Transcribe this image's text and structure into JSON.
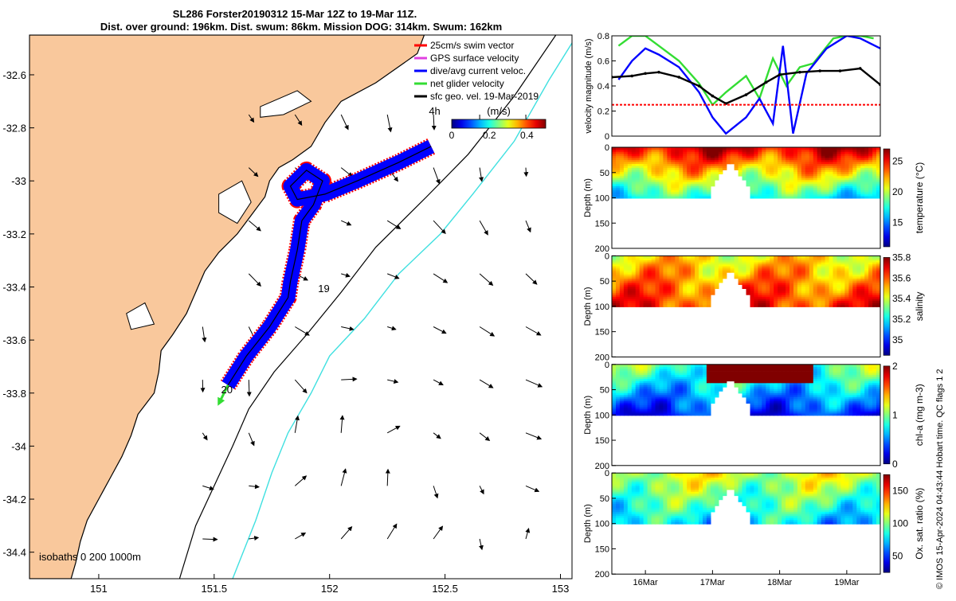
{
  "title": {
    "line1": "SL286 Forster20190312 15-Mar 12Z to 19-Mar 11Z.",
    "line2": "Dist. over ground: 196km. Dist. swum: 86km. Mission DOG: 314km. Swum: 162km"
  },
  "colors": {
    "land": "#f9c89c",
    "ocean": "#ffffff",
    "iso200": "#000000",
    "iso1000": "#3fe0e0",
    "swim": "#ff0000",
    "gps": "#e040e0",
    "dive": "#0000ff",
    "net": "#33dd33",
    "geo": "#000000"
  },
  "side_note": "© IMOS 15-Apr-2024 04:43:44 Hobart time. QC flags 1  2",
  "chart_data": [
    {
      "id": "map",
      "type": "scatter",
      "xlim": [
        150.7,
        153.05
      ],
      "ylim": [
        -34.5,
        -32.45
      ],
      "xticks": [
        "151",
        "151.5",
        "152",
        "152.5",
        "153"
      ],
      "yticks": [
        "-32.6",
        "-32.8",
        "-33",
        "-33.2",
        "-33.4",
        "-33.6",
        "-33.8",
        "-34",
        "-34.2",
        "-34.4"
      ],
      "legend": [
        {
          "label": "25cm/s swim vector",
          "color": "#ff0000"
        },
        {
          "label": "GPS surface velocity",
          "color": "#e040e0"
        },
        {
          "label": "dive/avg current veloc.",
          "color": "#0000ff"
        },
        {
          "label": "net glider velocity",
          "color": "#33dd33"
        },
        {
          "label": "sfc geo. vel. 19-Mar-2019",
          "color": "#000000"
        }
      ],
      "legend_position": "top-right",
      "colorbar": {
        "label": "(m/s)",
        "ticks": [
          "0",
          "0.2",
          "0.4"
        ],
        "range": [
          0,
          0.5
        ]
      },
      "isobaths_label": "isobaths  0   200  1000m",
      "markers": [
        {
          "label": "4h",
          "lon": 152.43,
          "lat": -32.75
        },
        {
          "label": "19",
          "lon": 151.95,
          "lat": -33.42
        },
        {
          "label": "20",
          "lon": 151.53,
          "lat": -33.8
        }
      ],
      "track": [
        [
          152.44,
          -32.87
        ],
        [
          152.3,
          -32.93
        ],
        [
          152.12,
          -33.0
        ],
        [
          151.98,
          -33.05
        ],
        [
          151.86,
          -33.07
        ],
        [
          151.83,
          -33.02
        ],
        [
          151.9,
          -32.96
        ],
        [
          151.97,
          -33.0
        ],
        [
          151.93,
          -33.09
        ],
        [
          151.88,
          -33.15
        ],
        [
          151.86,
          -33.26
        ],
        [
          151.83,
          -33.38
        ],
        [
          151.82,
          -33.44
        ],
        [
          151.74,
          -33.55
        ],
        [
          151.64,
          -33.66
        ],
        [
          151.56,
          -33.77
        ]
      ],
      "net_velocity_end": [
        151.52,
        -33.84
      ]
    },
    {
      "id": "velocity",
      "type": "line",
      "ylabel": "velocity magnitude (m/s)",
      "ylim": [
        0,
        0.8
      ],
      "yticks": [
        "0",
        "0.2",
        "0.4",
        "0.6",
        "0.8"
      ],
      "xlim": [
        15.5,
        19.5
      ],
      "series": [
        {
          "color": "#33dd33",
          "x": [
            15.6,
            15.8,
            16.0,
            16.2,
            16.5,
            16.8,
            17.0,
            17.2,
            17.5,
            17.7,
            17.9,
            18.1,
            18.3,
            18.5,
            18.8,
            19.0,
            19.2,
            19.4
          ],
          "values": [
            0.72,
            0.8,
            0.8,
            0.72,
            0.6,
            0.42,
            0.25,
            0.35,
            0.48,
            0.3,
            0.62,
            0.4,
            0.55,
            0.58,
            0.78,
            0.8,
            0.8,
            0.78
          ]
        },
        {
          "color": "#0000ff",
          "x": [
            15.6,
            15.8,
            16.0,
            16.2,
            16.5,
            16.8,
            17.0,
            17.2,
            17.5,
            17.7,
            17.9,
            18.05,
            18.2,
            18.4,
            18.7,
            19.0,
            19.2,
            19.5
          ],
          "values": [
            0.45,
            0.6,
            0.7,
            0.65,
            0.55,
            0.35,
            0.15,
            0.02,
            0.15,
            0.3,
            0.1,
            0.72,
            0.02,
            0.5,
            0.7,
            0.8,
            0.78,
            0.7
          ]
        },
        {
          "color": "#000000",
          "x": [
            15.5,
            15.8,
            16.0,
            16.2,
            16.5,
            16.8,
            17.0,
            17.2,
            17.5,
            17.8,
            18.0,
            18.3,
            18.6,
            18.9,
            19.2,
            19.5
          ],
          "values": [
            0.47,
            0.48,
            0.5,
            0.51,
            0.47,
            0.4,
            0.32,
            0.26,
            0.33,
            0.43,
            0.49,
            0.51,
            0.52,
            0.52,
            0.54,
            0.41
          ]
        },
        {
          "color": "#ff0000",
          "x": [
            15.5,
            19.5
          ],
          "values": [
            0.25,
            0.25
          ]
        }
      ]
    },
    {
      "id": "temperature",
      "type": "heatmap",
      "ylabel": "Depth (m)",
      "ylim": [
        200,
        0
      ],
      "yticks": [
        "0",
        "50",
        "100",
        "150",
        "200"
      ],
      "colorbar_label": "temperature (°C)",
      "colorbar_ticks": [
        "15",
        "20",
        "25"
      ],
      "crange": [
        11,
        27
      ],
      "profile": {
        "surface": 26,
        "deep": 17
      }
    },
    {
      "id": "salinity",
      "type": "heatmap",
      "ylabel": "Depth (m)",
      "ylim": [
        200,
        0
      ],
      "yticks": [
        "0",
        "50",
        "100",
        "150",
        "200"
      ],
      "colorbar_label": "salinity",
      "colorbar_ticks": [
        "35",
        "35.2",
        "35.4",
        "35.6",
        "35.8"
      ],
      "crange": [
        34.85,
        35.8
      ],
      "profile": {
        "surface": 35.45,
        "deep": 35.65
      }
    },
    {
      "id": "chla",
      "type": "heatmap",
      "ylabel": "Depth (m)",
      "ylim": [
        200,
        0
      ],
      "yticks": [
        "0",
        "50",
        "100",
        "150",
        "200"
      ],
      "colorbar_label": "chl-a (mg m-3)",
      "colorbar_ticks": [
        "0",
        "1",
        "2"
      ],
      "crange": [
        0,
        2
      ],
      "profile": {
        "surface": 1.0,
        "deep": 0.3
      }
    },
    {
      "id": "oxygen",
      "type": "heatmap",
      "ylabel": "Depth (m)",
      "ylim": [
        200,
        0
      ],
      "yticks": [
        "0",
        "50",
        "100",
        "150",
        "200"
      ],
      "colorbar_label": "Ox. sat. ratio (%)",
      "colorbar_ticks": [
        "50",
        "100",
        "150"
      ],
      "crange": [
        25,
        175
      ],
      "profile": {
        "surface": 115,
        "deep": 75
      },
      "xticks": [
        "16Mar",
        "17Mar",
        "18Mar",
        "19Mar"
      ]
    }
  ]
}
